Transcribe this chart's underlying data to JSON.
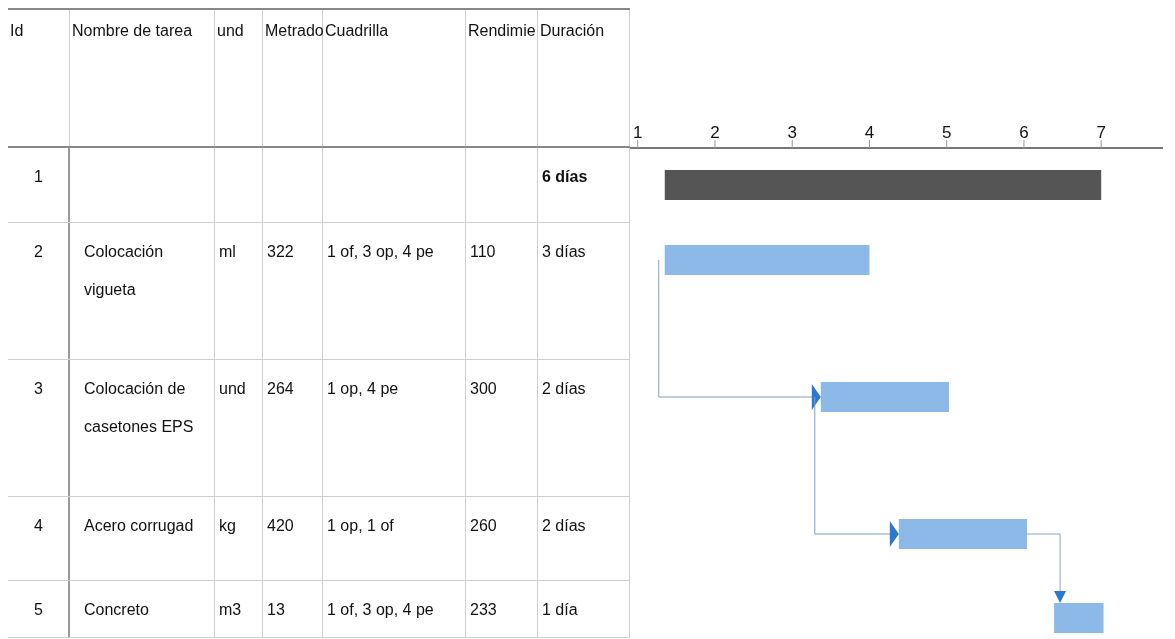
{
  "chart_data": [
    {
      "type": "other",
      "categories": [
        "Id",
        "Nombre de tarea",
        "und",
        "Metrado",
        "Cuadrilla",
        "Rendimie",
        "Duración"
      ],
      "cells": [
        [
          "1",
          null,
          null,
          null,
          null,
          null,
          "6 días"
        ],
        [
          "2",
          "Colocación vigueta",
          "ml",
          "322",
          "1 of, 3 op, 4 pe",
          "110",
          "3 días"
        ],
        [
          "3",
          "Colocación de casetones EPS",
          "und",
          "264",
          "1 op, 4 pe",
          "300",
          "2 días"
        ],
        [
          "4",
          "Acero corrugad",
          "kg",
          "420",
          "1 op, 1 of",
          "260",
          "2 días"
        ],
        [
          "5",
          "Concreto",
          "m3",
          "13",
          "1 of, 3 op, 4 pe",
          "233",
          "1 día"
        ]
      ]
    },
    {
      "type": "bar",
      "orientation": "horizontal",
      "categories": [
        null,
        null,
        null,
        null,
        null
      ],
      "base": [
        1.35,
        1.35,
        3.37,
        4.38,
        6.39
      ],
      "values": [
        5.65,
        2.65,
        1.66,
        1.66,
        0.64
      ],
      "colors": [
        "#555555",
        "#8db9e8",
        "#8db9e8",
        "#8db9e8",
        "#8db9e8"
      ],
      "xlim": [
        0.9,
        7.8
      ],
      "xticks": [
        1,
        2,
        3,
        4,
        5,
        6,
        7
      ],
      "tick_labels": "x"
    }
  ]
}
